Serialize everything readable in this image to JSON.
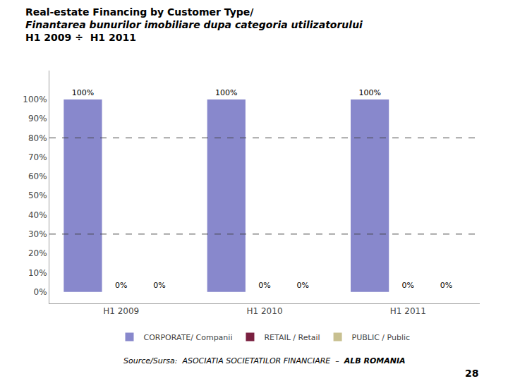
{
  "chart_data": {
    "type": "bar",
    "title": "Real-estate Financing by Customer Type/",
    "subtitle": "Finantarea bunurilor imobiliare dupa categoria utilizatorului",
    "annotations": [
      "H1 2009 ÷  H1 2011",
      "Source/Sursa:  ASOCIATIA SOCIETATILOR FINANCIARE  –  ",
      "ALB ROMANIA",
      "28"
    ],
    "categories": [
      "H1 2009",
      "H1 2010",
      "H1 2011"
    ],
    "series": [
      {
        "name": "CORPORATE/ Companii",
        "color": "#8888cc",
        "values": [
          100,
          100,
          100
        ],
        "value_labels": [
          "100%",
          "100%",
          "100%"
        ]
      },
      {
        "name": "RETAIL / Retail",
        "color": "#7a2040",
        "values": [
          0,
          0,
          0
        ],
        "value_labels": [
          "0%",
          "0%",
          "0%"
        ]
      },
      {
        "name": "PUBLIC / Public",
        "color": "#c8c090",
        "values": [
          0,
          0,
          0
        ],
        "value_labels": [
          "0%",
          "0%",
          "0%"
        ]
      }
    ],
    "ylim": [
      -6,
      115
    ],
    "yticks": [
      {
        "value": 0,
        "label": "0%"
      },
      {
        "value": 10,
        "label": "10%"
      },
      {
        "value": 20,
        "label": "20%"
      },
      {
        "value": 30,
        "label": "30%"
      },
      {
        "value": 40,
        "label": "40%"
      },
      {
        "value": 50,
        "label": "50%"
      },
      {
        "value": 60,
        "label": "60%"
      },
      {
        "value": 70,
        "label": "70%"
      },
      {
        "value": 80,
        "label": "80%"
      },
      {
        "value": 90,
        "label": "90%"
      },
      {
        "value": 100,
        "label": "100%"
      }
    ],
    "grid": false,
    "grid_lines": [
      30,
      80
    ],
    "data_labels": true,
    "legend": "bottom"
  }
}
